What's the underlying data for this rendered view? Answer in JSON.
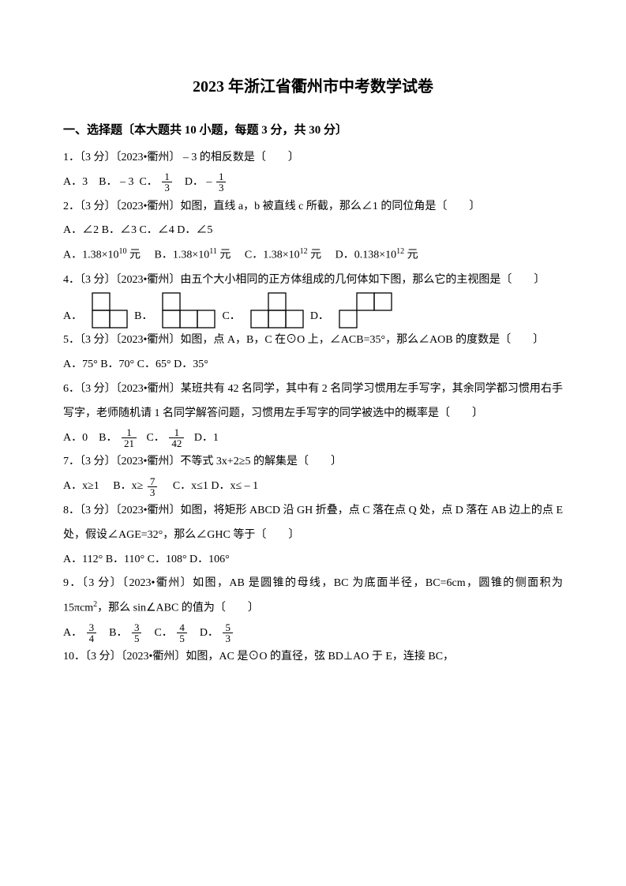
{
  "title": "2023 年浙江省衢州市中考数学试卷",
  "section1": "一、选择题〔本大题共 10 小题，每题 3 分，共 30 分〕",
  "q1": {
    "stem": "1．〔3 分〕〔2023•衢州〕 – 3 的相反数是〔　　〕",
    "a": "A．3",
    "b": "B． – 3",
    "c_pre": "C．",
    "d_pre": "D． –",
    "frac1_num": "1",
    "frac1_den": "3",
    "frac2_num": "1",
    "frac2_den": "3"
  },
  "q2": {
    "stem": "2．〔3 分〕〔2023•衢州〕如图，直线 a，b 被直线 c 所截，那么∠1 的同位角是〔　　〕",
    "opts": "A．∠2  B．∠3  C．∠4  D．∠5"
  },
  "q3": {
    "a": "A．1.38×10",
    "a_exp": "10",
    "a_unit": " 元",
    "b": "B．1.38×10",
    "b_exp": "11",
    "b_unit": " 元",
    "c": "C．1.38×10",
    "c_exp": "12",
    "c_unit": " 元",
    "d": "D．0.138×10",
    "d_exp": "12",
    "d_unit": " 元"
  },
  "q4": {
    "stem": "4．〔3 分〕〔2023•衢州〕由五个大小相同的正方体组成的几何体如下图，那么它的主视图是〔　　〕",
    "a": "A．",
    "b": "B．",
    "c": "C．",
    "d": "D．"
  },
  "q5": {
    "stem": "5．〔3 分〕〔2023•衢州〕如图，点 A，B，C 在⊙O 上，∠ACB=35°，那么∠AOB 的度数是〔　　〕",
    "opts": "A．75° B．70° C．65° D．35°"
  },
  "q6": {
    "stem": "6．〔3 分〕〔2023•衢州〕某班共有 42 名同学，其中有 2 名同学习惯用左手写字，其余同学都习惯用右手写字，老师随机请 1 名同学解答问题，习惯用左手写字的同学被选中的概率是〔　　〕",
    "a": "A．0",
    "b_pre": "B．",
    "c_pre": "C．",
    "d": "D．1",
    "frac1_num": "1",
    "frac1_den": "21",
    "frac2_num": "1",
    "frac2_den": "42"
  },
  "q7": {
    "stem": "7．〔3 分〕〔2023•衢州〕不等式 3x+2≥5 的解集是〔　　〕",
    "a": "A．x≥1",
    "b_pre": "B．x≥",
    "frac_num": "7",
    "frac_den": "3",
    "c": "C．x≤1",
    "d": "D．x≤ – 1"
  },
  "q8": {
    "stem": "8．〔3 分〕〔2023•衢州〕如图，将矩形 ABCD 沿 GH 折叠，点 C 落在点 Q 处，点 D 落在 AB 边上的点 E 处，假设∠AGE=32°，那么∠GHC 等于〔　　〕",
    "opts": "A．112° B．110° C．108° D．106°"
  },
  "q9": {
    "stem_p1": "9．〔3 分〕〔2023•衢州〕如图，AB 是圆锥的母线，BC 为底面半径，BC=6cm，圆锥的侧面积为 15πcm",
    "stem_exp": "2",
    "stem_p2": "，那么 sin∠ABC 的值为〔　　〕",
    "a_pre": "A．",
    "b_pre": "B．",
    "c_pre": "C．",
    "d_pre": "D．",
    "fa_num": "3",
    "fa_den": "4",
    "fb_num": "3",
    "fb_den": "5",
    "fc_num": "4",
    "fc_den": "5",
    "fd_num": "5",
    "fd_den": "3"
  },
  "q10": {
    "stem": "10．〔3 分〕〔2023•衢州〕如图，AC 是⊙O 的直径，弦 BD⊥AO 于 E，连接 BC，"
  },
  "svg": {
    "cell": 22,
    "stroke": "#000000",
    "stroke_width": 1.3
  }
}
